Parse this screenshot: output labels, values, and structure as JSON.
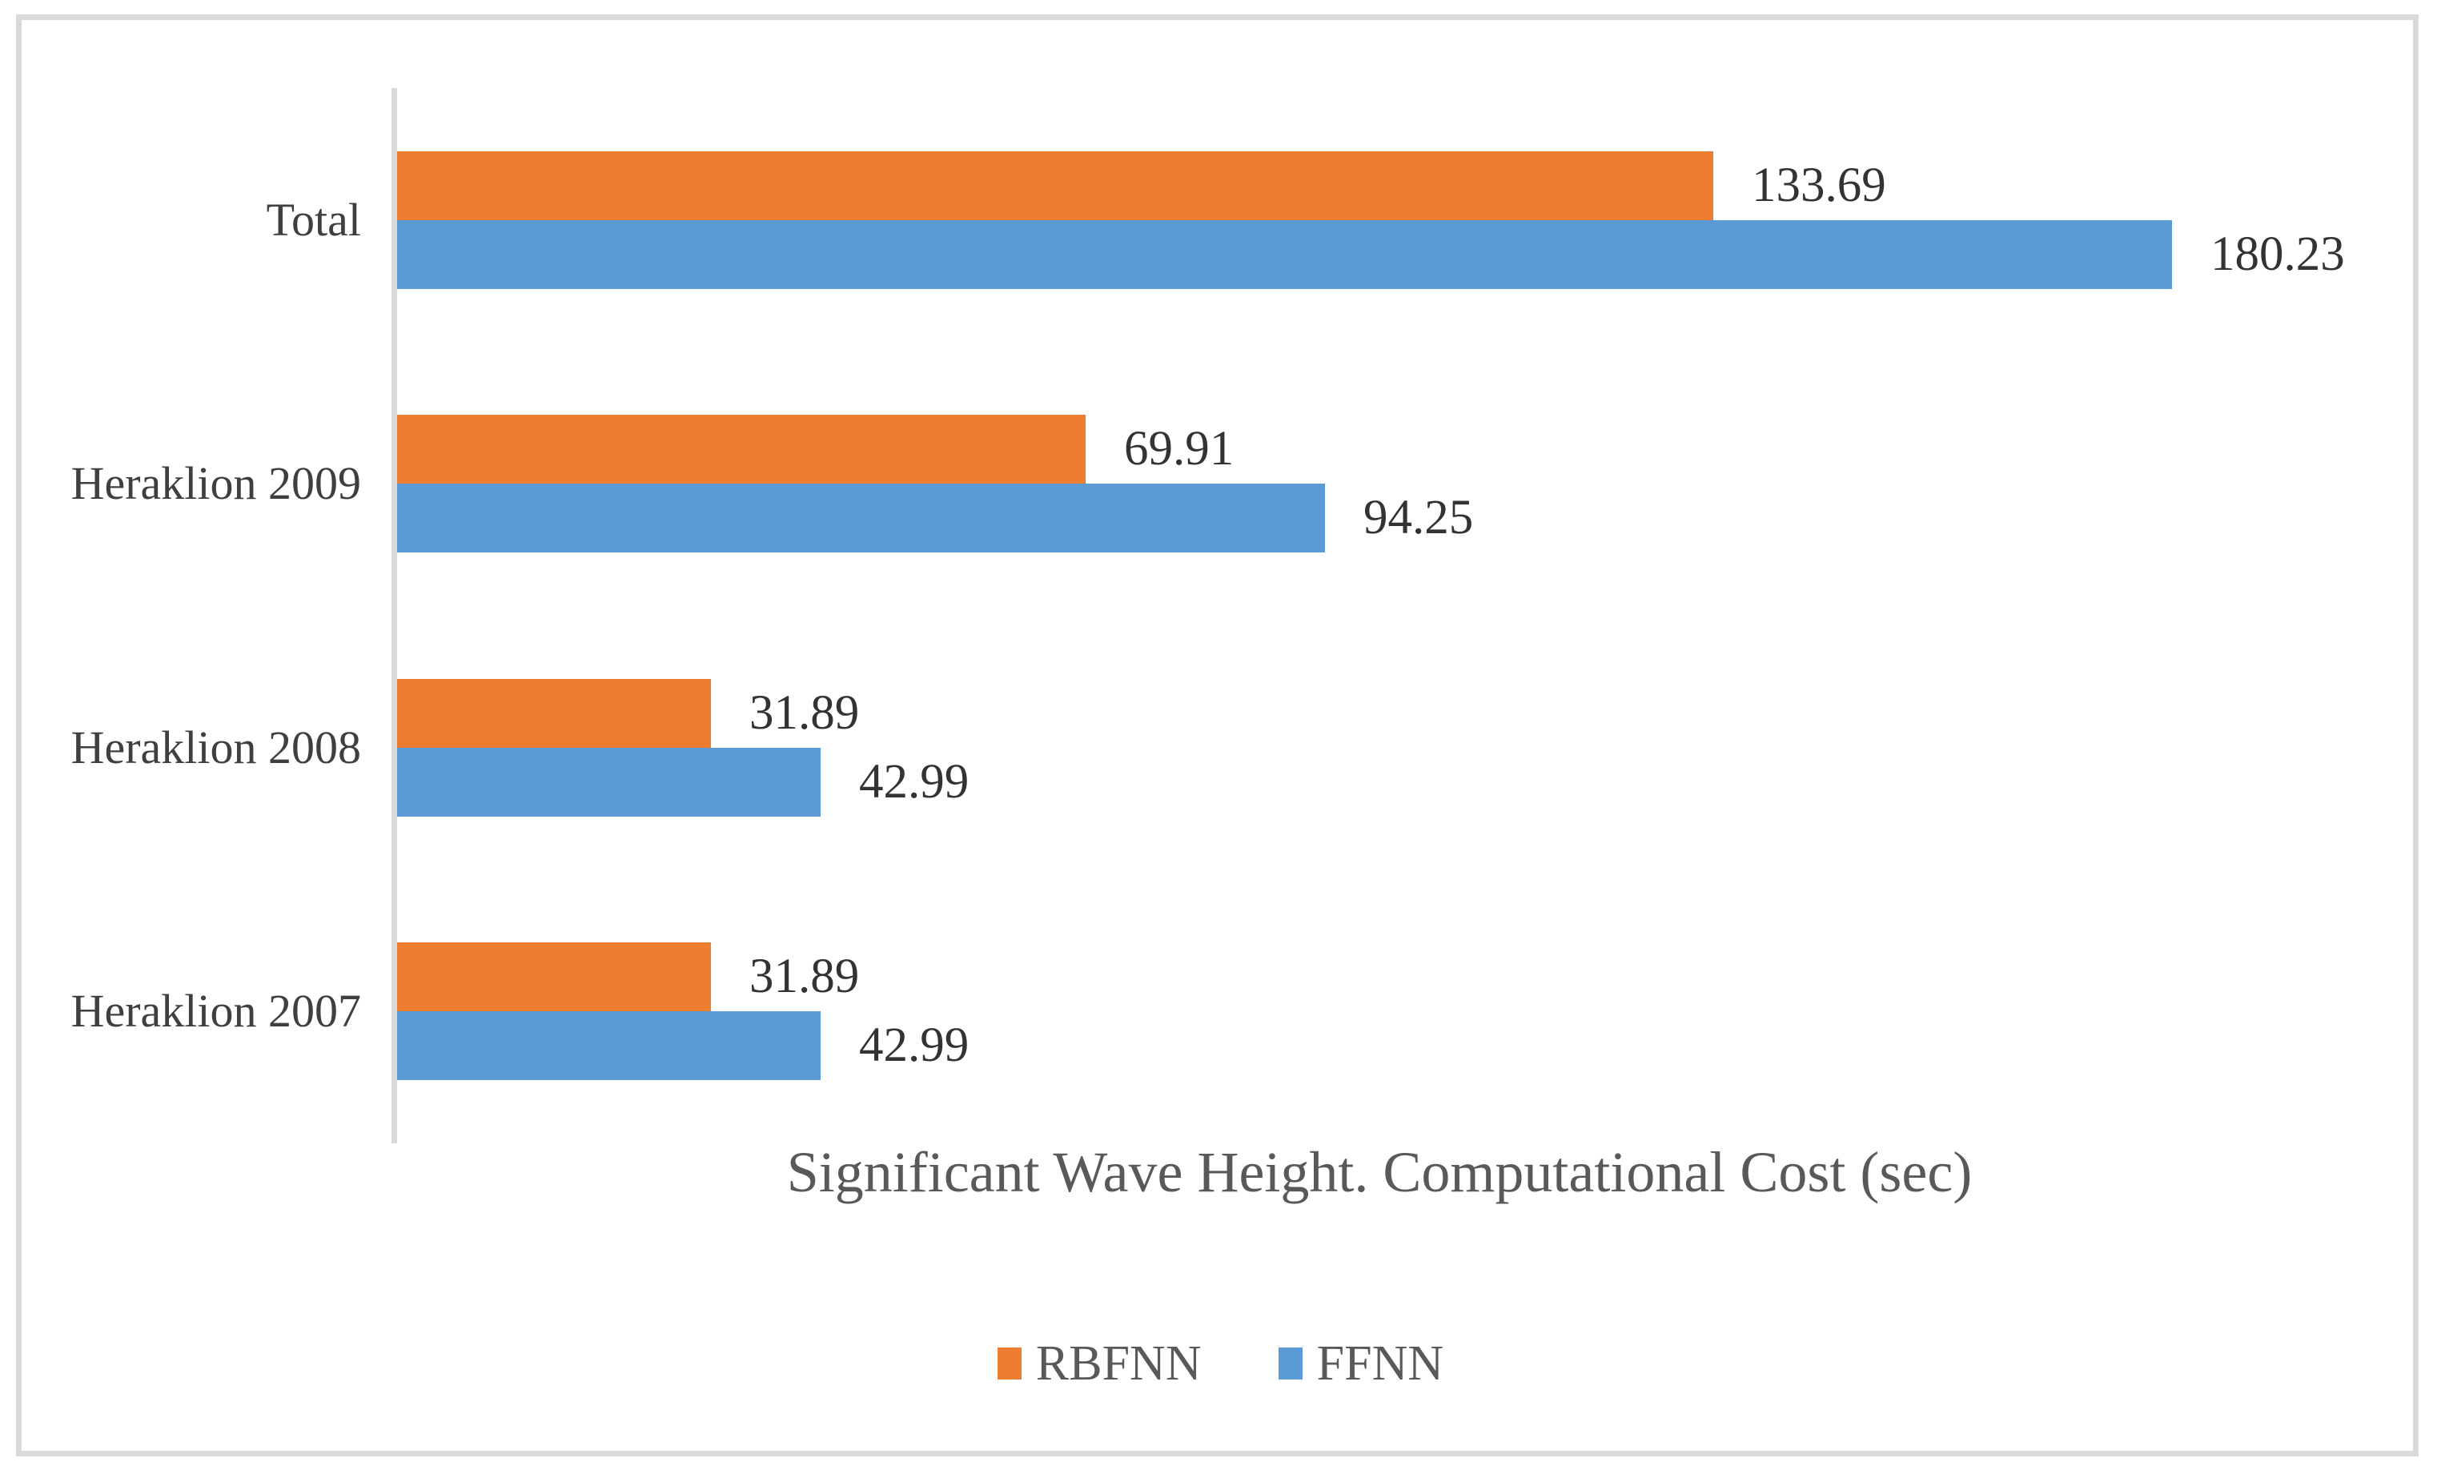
{
  "figure": {
    "background_color": "#FFFFFF",
    "border_color": "#D9D9D9",
    "axis_line_color": "#D9D9D9"
  },
  "chart_data": {
    "type": "bar",
    "orientation": "horizontal",
    "title": "Significant Wave Height. Computational Cost (sec)",
    "xlabel": "",
    "ylabel": "",
    "categories": [
      "Total",
      "Heraklion 2009",
      "Heraklion 2008",
      "Heraklion 2007"
    ],
    "series": [
      {
        "name": "RBFNN",
        "color": "#ED7D31",
        "values": [
          133.69,
          69.91,
          31.89,
          31.89
        ]
      },
      {
        "name": "FFNN",
        "color": "#5B9BD5",
        "values": [
          180.23,
          94.25,
          42.99,
          42.99
        ]
      }
    ],
    "xlim": [
      0,
      200
    ],
    "grid": false,
    "data_labels_visible": true,
    "value_label_format": "0.00",
    "legend_position": "bottom",
    "title_color": "#595959",
    "category_label_color": "#3F3F3F",
    "value_label_color": "#333333",
    "legend_text_color": "#595959"
  }
}
